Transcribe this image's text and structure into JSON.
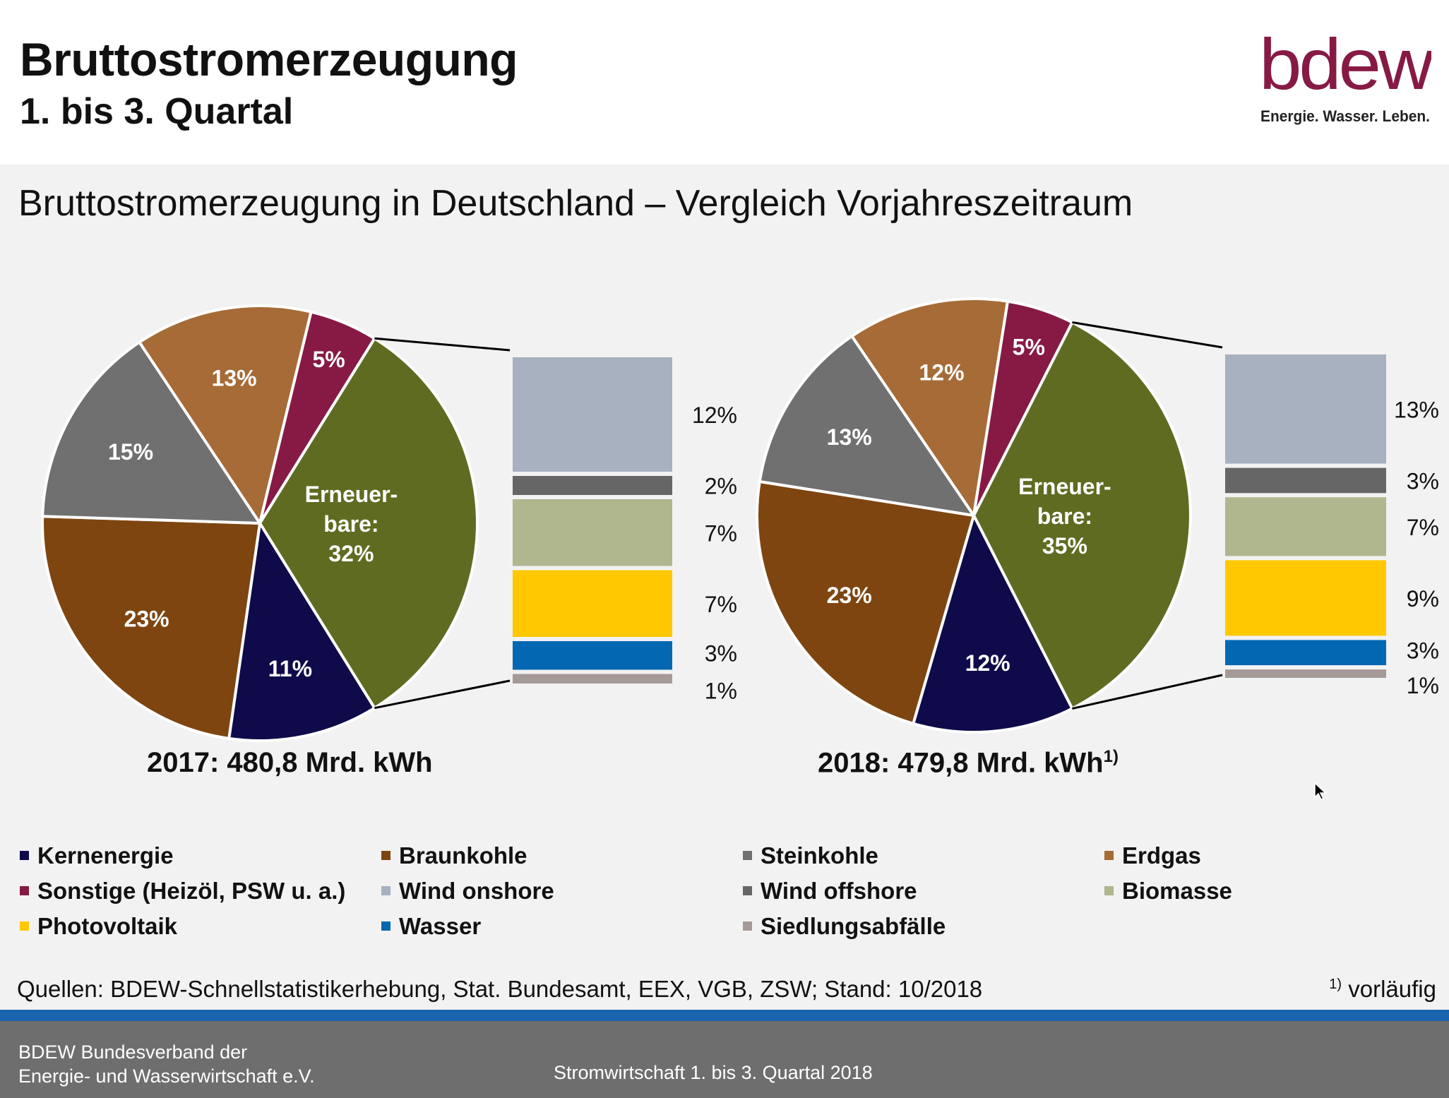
{
  "header": {
    "title": "Bruttostromerzeugung",
    "subtitle": "1. bis 3. Quartal",
    "logo_text": "bdew",
    "logo_tagline": "Energie. Wasser. Leben."
  },
  "slide_heading": "Bruttostromerzeugung in Deutschland – Vergleich Vorjahreszeitraum",
  "colors": {
    "Kernenergie": "#0f0b4a",
    "Braunkohle": "#7e4510",
    "Steinkohle": "#707070",
    "Erdgas": "#a66b36",
    "Sonstige": "#861a45",
    "Erneuerbare": "#606b22",
    "Wind onshore": "#a7b1c0",
    "Wind offshore": "#666666",
    "Biomasse": "#b0b68e",
    "Photovoltaik": "#ffc800",
    "Wasser": "#0467b2",
    "Siedlungsabfälle": "#a69a96",
    "logo": "#861a45"
  },
  "chart_data": [
    {
      "type": "pie",
      "year": "2017",
      "total_label": "2017:  480,8 Mrd. kWh",
      "slices": [
        {
          "name": "Erneuerbare",
          "value": 32,
          "label": [
            "Erneuer-",
            "bare:",
            "32%"
          ]
        },
        {
          "name": "Kernenergie",
          "value": 11,
          "label": [
            "11%"
          ]
        },
        {
          "name": "Braunkohle",
          "value": 23,
          "label": [
            "23%"
          ]
        },
        {
          "name": "Steinkohle",
          "value": 15,
          "label": [
            "15%"
          ]
        },
        {
          "name": "Erdgas",
          "value": 13,
          "label": [
            "13%"
          ]
        },
        {
          "name": "Sonstige",
          "value": 5,
          "label": [
            "5%"
          ]
        }
      ],
      "renewables_breakdown": [
        {
          "name": "Wind onshore",
          "value": 12,
          "label": "12%"
        },
        {
          "name": "Wind offshore",
          "value": 2,
          "label": "2%"
        },
        {
          "name": "Biomasse",
          "value": 7,
          "label": "7%"
        },
        {
          "name": "Photovoltaik",
          "value": 7,
          "label": "7%"
        },
        {
          "name": "Wasser",
          "value": 3,
          "label": "3%"
        },
        {
          "name": "Siedlungsabfälle",
          "value": 1,
          "label": "1%"
        }
      ]
    },
    {
      "type": "pie",
      "year": "2018",
      "total_label": "2018: 479,8 Mrd. kWh",
      "total_note": "1)",
      "slices": [
        {
          "name": "Erneuerbare",
          "value": 35,
          "label": [
            "Erneuer-",
            "bare:",
            "35%"
          ]
        },
        {
          "name": "Kernenergie",
          "value": 12,
          "label": [
            "12%"
          ]
        },
        {
          "name": "Braunkohle",
          "value": 23,
          "label": [
            "23%"
          ]
        },
        {
          "name": "Steinkohle",
          "value": 13,
          "label": [
            "13%"
          ]
        },
        {
          "name": "Erdgas",
          "value": 12,
          "label": [
            "12%"
          ]
        },
        {
          "name": "Sonstige",
          "value": 5,
          "label": [
            "5%"
          ]
        }
      ],
      "renewables_breakdown": [
        {
          "name": "Wind onshore",
          "value": 13,
          "label": "13%"
        },
        {
          "name": "Wind offshore",
          "value": 3,
          "label": "3%"
        },
        {
          "name": "Biomasse",
          "value": 7,
          "label": "7%"
        },
        {
          "name": "Photovoltaik",
          "value": 9,
          "label": "9%"
        },
        {
          "name": "Wasser",
          "value": 3,
          "label": "3%"
        },
        {
          "name": "Siedlungsabfälle",
          "value": 1,
          "label": "1%"
        }
      ]
    }
  ],
  "legend": [
    {
      "key": "Kernenergie",
      "label": "Kernenergie"
    },
    {
      "key": "Braunkohle",
      "label": "Braunkohle"
    },
    {
      "key": "Steinkohle",
      "label": "Steinkohle"
    },
    {
      "key": "Erdgas",
      "label": "Erdgas"
    },
    {
      "key": "Sonstige",
      "label": "Sonstige (Heizöl, PSW u. a.)"
    },
    {
      "key": "Wind onshore",
      "label": "Wind onshore"
    },
    {
      "key": "Wind offshore",
      "label": "Wind offshore"
    },
    {
      "key": "Biomasse",
      "label": "Biomasse"
    },
    {
      "key": "Photovoltaik",
      "label": "Photovoltaik"
    },
    {
      "key": "Wasser",
      "label": "Wasser"
    },
    {
      "key": "Siedlungsabfälle",
      "label": "Siedlungsabfälle"
    }
  ],
  "sources": "Quellen:  BDEW-Schnellstatistikerhebung,  Stat. Bundesamt,  EEX, VGB, ZSW; Stand:  10/2018",
  "footnote": {
    "mark": "1)",
    "text": " vorläufig"
  },
  "footer": {
    "org_line1": "BDEW Bundesverband  der",
    "org_line2": "Energie-  und Wasserwirtschaft e.V.",
    "center": "Stromwirtschaft  1. bis 3. Quartal 2018"
  }
}
